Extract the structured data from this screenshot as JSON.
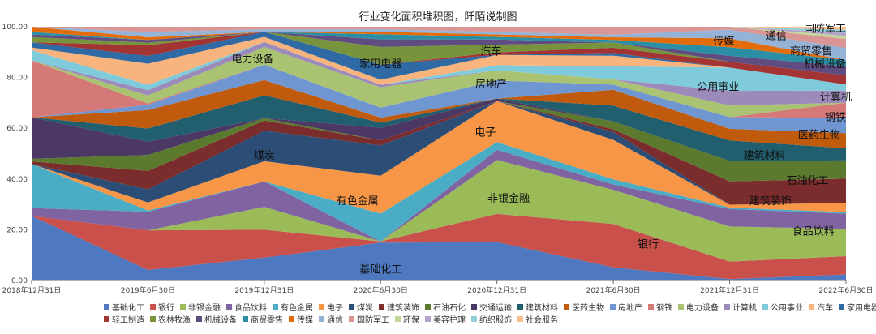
{
  "chart_data": {
    "type": "area",
    "title": "行业变化面积堆积图，阡陌说制图",
    "xlabel": "",
    "ylabel": "",
    "ylim": [
      0,
      100
    ],
    "grid": false,
    "legend_position": "bottom",
    "x": [
      "2018年12月31日",
      "2019年6月30日",
      "2019年12月31日",
      "2020年6月30日",
      "2020年12月31日",
      "2021年6月30日",
      "2021年12月31日",
      "2022年6月30日"
    ],
    "x_tick_labels": [
      "2018年12月31日",
      "2019年6月30日",
      "2019年12月31日",
      "2020年6月30日",
      "2020年12月31日",
      "2021年6月30日",
      "2021年12月31日",
      "2022年6月30日"
    ],
    "y_ticks": [
      0,
      20,
      40,
      60,
      80,
      100
    ],
    "y_tick_labels": [
      "0.00",
      "20.00",
      "40.00",
      "60.00",
      "80.00",
      "100.00"
    ],
    "series": [
      {
        "name": "基础化工",
        "color": "#4e79c0",
        "values": [
          25,
          4,
          9,
          15,
          15,
          5,
          0.5,
          2
        ]
      },
      {
        "name": "银行",
        "color": "#c9504b",
        "values": [
          0,
          15,
          11,
          0.5,
          11,
          16.5,
          6,
          6
        ]
      },
      {
        "name": "非银金融",
        "color": "#9bbb59",
        "values": [
          0,
          0,
          9,
          0,
          21,
          13,
          12,
          9
        ]
      },
      {
        "name": "食品饮料",
        "color": "#8064a2",
        "values": [
          3,
          7,
          10,
          0,
          4,
          2,
          6,
          5
        ]
      },
      {
        "name": "有色金属",
        "color": "#4bacc6",
        "values": [
          17,
          0.5,
          0,
          11,
          3,
          2,
          0.5,
          0.5
        ]
      },
      {
        "name": "电子",
        "color": "#f79646",
        "values": [
          0,
          3,
          8,
          15,
          16,
          15,
          1,
          3
        ]
      },
      {
        "name": "煤炭",
        "color": "#2c4d75",
        "values": [
          0,
          5,
          12,
          12,
          0,
          3,
          0,
          0
        ]
      },
      {
        "name": "建筑装饰",
        "color": "#7b2c2c",
        "values": [
          1,
          7,
          4,
          2,
          0,
          1,
          8,
          8
        ]
      },
      {
        "name": "石油石化",
        "color": "#5c7a2e",
        "values": [
          1,
          6,
          1,
          0,
          0,
          3,
          7,
          6
        ]
      },
      {
        "name": "交通运输",
        "color": "#4b3865",
        "values": [
          16,
          5,
          0,
          5,
          1,
          0,
          0,
          0
        ]
      },
      {
        "name": "建筑材料",
        "color": "#215e6e",
        "values": [
          0,
          5,
          9,
          2,
          0,
          6,
          7,
          4
        ]
      },
      {
        "name": "医药生物",
        "color": "#c05a0c",
        "values": [
          0,
          7,
          6,
          2,
          0,
          6,
          4,
          5
        ]
      },
      {
        "name": "房地产",
        "color": "#6f96d0",
        "values": [
          0,
          2,
          6,
          4,
          7,
          2,
          4,
          5
        ]
      },
      {
        "name": "钢铁",
        "color": "#d47977",
        "values": [
          22,
          0.5,
          0,
          0,
          0,
          0,
          0,
          5
        ]
      },
      {
        "name": "电力设备",
        "color": "#a9c373",
        "values": [
          0,
          3,
          7,
          8,
          4,
          2,
          4,
          0
        ]
      },
      {
        "name": "计算机",
        "color": "#9c8bba",
        "values": [
          0,
          2,
          2,
          1,
          0,
          0,
          5,
          4
        ]
      },
      {
        "name": "公用事业",
        "color": "#7fcbdc",
        "values": [
          4,
          2,
          0,
          0,
          2,
          5,
          8,
          2
        ]
      },
      {
        "name": "汽车",
        "color": "#f9b47d",
        "values": [
          1,
          8,
          2,
          2,
          4,
          4,
          0,
          0
        ]
      },
      {
        "name": "家用电器",
        "color": "#2f6aa5",
        "values": [
          2,
          3,
          2,
          6,
          0,
          1,
          0,
          0
        ]
      },
      {
        "name": "轻工制造",
        "color": "#a23434",
        "values": [
          0,
          4,
          0,
          0,
          1,
          2,
          2,
          3
        ]
      },
      {
        "name": "农林牧渔",
        "color": "#77933c",
        "values": [
          2,
          1,
          0,
          7,
          3,
          2,
          0,
          0
        ]
      },
      {
        "name": "机械设备",
        "color": "#5f4c80",
        "values": [
          1,
          1,
          0,
          3,
          2,
          0,
          2,
          3
        ]
      },
      {
        "name": "商贸零售",
        "color": "#2a8ea5",
        "values": [
          1,
          0,
          0,
          2,
          1,
          1,
          3,
          2
        ]
      },
      {
        "name": "传媒",
        "color": "#e36c0a",
        "values": [
          2,
          1,
          0,
          1,
          1,
          1,
          3,
          0
        ]
      },
      {
        "name": "通信",
        "color": "#95b3d7",
        "values": [
          0,
          2,
          1,
          1,
          1,
          1,
          3,
          4
        ]
      },
      {
        "name": "国防军工",
        "color": "#d99694",
        "values": [
          0,
          2,
          1,
          1,
          2,
          3,
          1,
          3
        ]
      },
      {
        "name": "环保",
        "color": "#c4d79b",
        "values": [
          0,
          0,
          0,
          0,
          0,
          0,
          0,
          1
        ]
      },
      {
        "name": "美容护理",
        "color": "#b2a2c7",
        "values": [
          0,
          0,
          0,
          0,
          0,
          0,
          0,
          1
        ]
      },
      {
        "name": "纺织服饰",
        "color": "#92cddc",
        "values": [
          0,
          0,
          0,
          0,
          0,
          0,
          0,
          1
        ]
      },
      {
        "name": "社会服务",
        "color": "#fac08f",
        "values": [
          0,
          0,
          0,
          0,
          0,
          0,
          0,
          1
        ]
      }
    ],
    "annotations": [
      {
        "text": "基础化工",
        "x_index": 3,
        "y": 3
      },
      {
        "text": "银行",
        "x_index": 5.3,
        "y": 13
      },
      {
        "text": "非银金融",
        "x_index": 4.1,
        "y": 31
      },
      {
        "text": "食品饮料",
        "x_index": 6.9,
        "y": 18
      },
      {
        "text": "有色金属",
        "x_index": 2.8,
        "y": 30
      },
      {
        "text": "电子",
        "x_index": 3.9,
        "y": 57
      },
      {
        "text": "煤炭",
        "x_index": 2.0,
        "y": 48
      },
      {
        "text": "建筑装饰",
        "x_index": 6.35,
        "y": 30
      },
      {
        "text": "石油化工",
        "x_index": 6.85,
        "y": 38
      },
      {
        "text": "建筑材料",
        "x_index": 6.3,
        "y": 48
      },
      {
        "text": "医药生物",
        "x_index": 6.95,
        "y": 56
      },
      {
        "text": "钢铁",
        "x_index": 7.0,
        "y": 63
      },
      {
        "text": "计算机",
        "x_index": 7.05,
        "y": 71
      },
      {
        "text": "公用事业",
        "x_index": 5.9,
        "y": 75
      },
      {
        "text": "房地产",
        "x_index": 3.95,
        "y": 76
      },
      {
        "text": "电力设备",
        "x_index": 1.9,
        "y": 86
      },
      {
        "text": "家用电器",
        "x_index": 3.0,
        "y": 84
      },
      {
        "text": "汽车",
        "x_index": 3.95,
        "y": 89
      },
      {
        "text": "机械设备",
        "x_index": 7.0,
        "y": 84
      },
      {
        "text": "商贸零售",
        "x_index": 6.7,
        "y": 89
      },
      {
        "text": "传媒",
        "x_index": 5.95,
        "y": 93
      },
      {
        "text": "通信",
        "x_index": 6.4,
        "y": 95
      },
      {
        "text": "国防军工",
        "x_index": 7.0,
        "y": 98
      }
    ],
    "legend": [
      "基础化工",
      "银行",
      "非银金融",
      "食品饮料",
      "有色金属",
      "电子",
      "煤炭",
      "建筑装饰",
      "石油石化",
      "交通运输",
      "建筑材料",
      "医药生物",
      "房地产",
      "钢铁",
      "电力设备",
      "计算机",
      "公用事业",
      "汽车",
      "家用电器",
      "轻工制造",
      "农林牧渔",
      "机械设备",
      "商贸零售",
      "传媒",
      "通信",
      "国防军工",
      "环保",
      "美容护理",
      "纺织服饰",
      "社会服务"
    ]
  }
}
